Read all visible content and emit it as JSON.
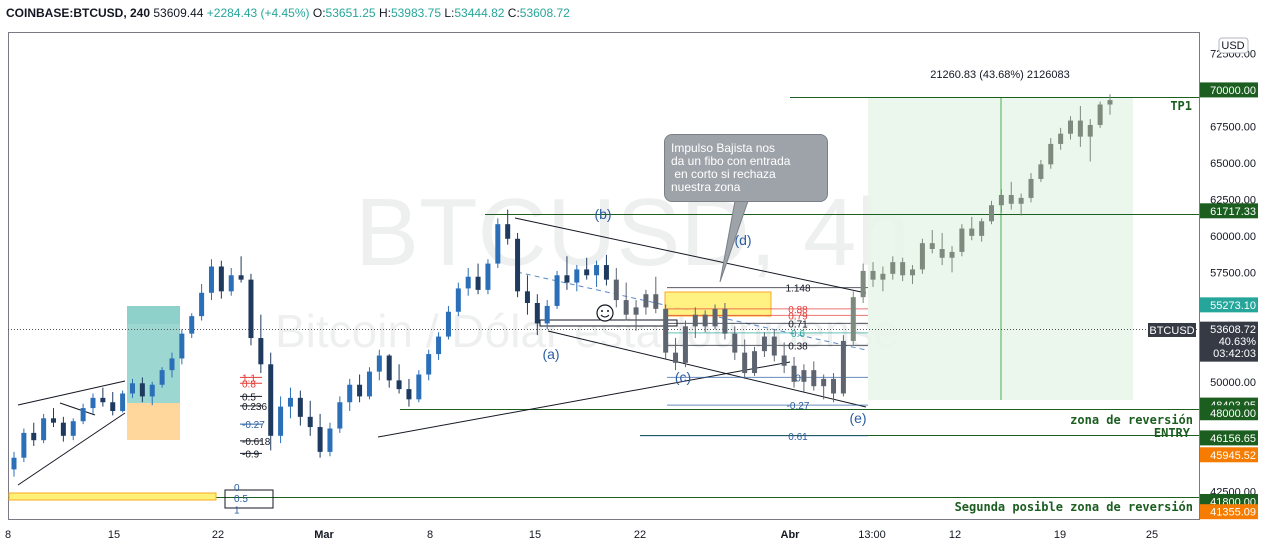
{
  "header": {
    "symbol": "COINBASE:BTCUSD, 240",
    "last": "53609.44",
    "change": "+2284.43 (+4.45%)",
    "o_label": "O:",
    "o": "53651.25",
    "h_label": "H:",
    "h": "53983.75",
    "l_label": "L:",
    "l": "53444.82",
    "c_label": "C:",
    "c": "53608.72"
  },
  "watermark": {
    "title": "BTCUSD, 4h",
    "subtitle": "Bitcoin / Dólar estadounidense"
  },
  "currency_button": "USD",
  "callout_text": "Impulso Bajista nos\nda un fibo con entrada\n en corto si rechaza\nnuestra zona",
  "measure_label": "21260.83 (43.68%) 2126083",
  "labels": {
    "tp1": "TP1",
    "zona_reversion": "zona de reversión",
    "entry": "ENTRY",
    "segunda": "Segunda posible zona de reversión"
  },
  "waves": {
    "a": "(a)",
    "b": "(b)",
    "c": "(c)",
    "d": "(d)",
    "e": "(e)"
  },
  "fib_right": [
    {
      "label": "1.148",
      "price": 56450,
      "color": "#131722"
    },
    {
      "label": "0.88",
      "price": 55000,
      "color": "#e53935"
    },
    {
      "label": "0.79",
      "price": 54550,
      "color": "#e53935"
    },
    {
      "label": "0.71",
      "price": 54000,
      "color": "#131722"
    },
    {
      "label": "0.6",
      "price": 53350,
      "color": "#26a69a"
    },
    {
      "label": "0.38",
      "price": 52500,
      "color": "#131722"
    },
    {
      "label": "0",
      "price": 50300,
      "color": "#2a5d9f"
    },
    {
      "label": "-0.27",
      "price": 48400,
      "color": "#2a5d9f"
    },
    {
      "label": "0.61",
      "price": 46300,
      "color": "#2a5d9f"
    }
  ],
  "fib_left": [
    {
      "label": "1.1",
      "price": 50300,
      "color": "#e53935"
    },
    {
      "label": "0.8",
      "price": 49900,
      "color": "#e53935"
    },
    {
      "label": "0.5",
      "price": 49000,
      "color": "#131722"
    },
    {
      "label": "0.236",
      "price": 48350,
      "color": "#131722"
    },
    {
      "label": "-0.27",
      "price": 47100,
      "color": "#2a5d9f"
    },
    {
      "label": "-0.618",
      "price": 45950,
      "color": "#131722"
    },
    {
      "label": "-0.9",
      "price": 45100,
      "color": "#131722"
    }
  ],
  "fib_bottom": [
    {
      "label": "0",
      "price": 42800
    },
    {
      "label": "0.5",
      "price": 42050
    },
    {
      "label": "1",
      "price": 41250
    }
  ],
  "chart_data": {
    "type": "candlestick",
    "symbol": "COINBASE:BTCUSD",
    "interval": "240",
    "x_ticks": [
      "8",
      "15",
      "22",
      "Mar",
      "8",
      "15",
      "22",
      "Abr",
      "13:00",
      "12",
      "19",
      "25"
    ],
    "y_ticks": [
      "72500.00",
      "67500.00",
      "65000.00",
      "62500.00",
      "60000.00",
      "57500.00",
      "50000.00",
      "42500.00"
    ],
    "ylim": [
      40600,
      73900
    ],
    "price_tags": [
      {
        "value": "70000.00",
        "price": 70000,
        "color": "#1b5e20"
      },
      {
        "value": "61717.33",
        "price": 61717,
        "color": "#1b5e20"
      },
      {
        "value": "55273.10",
        "price": 55273,
        "color": "#26a69a"
      },
      {
        "value": "53608.72",
        "price": 53608,
        "color": "#363a45",
        "extra": [
          "40.63%",
          "03:42:03"
        ],
        "label": "BTCUSD"
      },
      {
        "value": "48403.95",
        "price": 48404,
        "color": "#1b5e20"
      },
      {
        "value": "48000.00",
        "price": 47880,
        "color": "#1b5e20"
      },
      {
        "value": "46156.65",
        "price": 46157,
        "color": "#1b5e20"
      },
      {
        "value": "45945.52",
        "price": 45000,
        "color": "#f57c00"
      },
      {
        "value": "41800.00",
        "price": 41800,
        "color": "#1b5e20"
      },
      {
        "value": "41355.09",
        "price": 41100,
        "color": "#f57c00"
      }
    ],
    "horizontal_levels": [
      70000,
      61717,
      48404,
      46157,
      41800
    ],
    "candles": [
      [
        44000,
        45200,
        43500,
        44800
      ],
      [
        44800,
        46800,
        44500,
        46500
      ],
      [
        46500,
        47200,
        45600,
        46000
      ],
      [
        46000,
        47800,
        45800,
        47500
      ],
      [
        47500,
        48200,
        46900,
        47200
      ],
      [
        47200,
        47600,
        45900,
        46300
      ],
      [
        46300,
        47500,
        46000,
        47300
      ],
      [
        47300,
        48500,
        47100,
        48200
      ],
      [
        48200,
        49200,
        47800,
        48900
      ],
      [
        48900,
        49600,
        48300,
        48600
      ],
      [
        48600,
        49300,
        47700,
        48000
      ],
      [
        48000,
        49400,
        47900,
        49200
      ],
      [
        49200,
        50200,
        48900,
        49900
      ],
      [
        49900,
        50300,
        48600,
        49000
      ],
      [
        49000,
        50000,
        48400,
        49800
      ],
      [
        49800,
        51000,
        49600,
        50800
      ],
      [
        50800,
        52000,
        50300,
        51600
      ],
      [
        51600,
        53600,
        51200,
        53300
      ],
      [
        53300,
        54700,
        53000,
        54500
      ],
      [
        54500,
        56700,
        54200,
        56100
      ],
      [
        56100,
        58400,
        55600,
        57900
      ],
      [
        57900,
        58300,
        55700,
        56200
      ],
      [
        56200,
        57800,
        55900,
        57300
      ],
      [
        57300,
        58600,
        56800,
        57000
      ],
      [
        57000,
        57400,
        52500,
        53000
      ],
      [
        53000,
        54600,
        50600,
        51200
      ],
      [
        51200,
        52000,
        45300,
        46300
      ],
      [
        46300,
        49000,
        45800,
        48300
      ],
      [
        48300,
        49600,
        47500,
        48900
      ],
      [
        48900,
        49400,
        47000,
        47600
      ],
      [
        47600,
        48700,
        46300,
        46900
      ],
      [
        46900,
        47800,
        44800,
        45200
      ],
      [
        45200,
        47200,
        44900,
        46800
      ],
      [
        46800,
        49000,
        46500,
        48600
      ],
      [
        48600,
        50200,
        48000,
        49800
      ],
      [
        49800,
        50500,
        48600,
        49000
      ],
      [
        49000,
        51000,
        48800,
        50700
      ],
      [
        50700,
        52200,
        50100,
        51800
      ],
      [
        51800,
        51900,
        49600,
        50100
      ],
      [
        50100,
        51200,
        49200,
        49500
      ],
      [
        49500,
        50200,
        48300,
        48800
      ],
      [
        48800,
        50800,
        48600,
        50500
      ],
      [
        50500,
        52200,
        50100,
        51900
      ],
      [
        51900,
        53400,
        51500,
        53100
      ],
      [
        53100,
        55200,
        52900,
        54800
      ],
      [
        54800,
        56800,
        54500,
        56400
      ],
      [
        56400,
        57800,
        55900,
        57200
      ],
      [
        57200,
        58100,
        56000,
        56300
      ],
      [
        56300,
        58400,
        56000,
        58100
      ],
      [
        58100,
        61200,
        57800,
        60800
      ],
      [
        60800,
        61800,
        59400,
        59800
      ],
      [
        59800,
        60200,
        55800,
        56200
      ],
      [
        56200,
        57300,
        54600,
        55400
      ],
      [
        55400,
        56000,
        53200,
        54000
      ],
      [
        54000,
        55600,
        53600,
        55200
      ],
      [
        55200,
        57600,
        55000,
        57300
      ],
      [
        57300,
        58600,
        56300,
        56800
      ],
      [
        56800,
        58000,
        56200,
        57700
      ],
      [
        57700,
        58500,
        57000,
        57300
      ],
      [
        57300,
        58300,
        56500,
        58000
      ],
      [
        58000,
        58700,
        56600,
        57000
      ],
      [
        57000,
        57800,
        55100,
        55600
      ],
      [
        55600,
        56800,
        54200,
        54600
      ],
      [
        54600,
        55600,
        53500,
        55100
      ],
      [
        55100,
        56300,
        54600,
        56000
      ],
      [
        56000,
        57200,
        54700,
        55000
      ],
      [
        55000,
        55300,
        51600,
        52000
      ],
      [
        52000,
        53000,
        50800,
        51300
      ],
      [
        51300,
        54200,
        51000,
        53800
      ],
      [
        53800,
        55100,
        53000,
        54600
      ],
      [
        54600,
        54900,
        53400,
        53800
      ],
      [
        53800,
        55300,
        53600,
        55000
      ],
      [
        55000,
        55400,
        52900,
        53300
      ],
      [
        53300,
        53800,
        51500,
        52000
      ],
      [
        52000,
        52900,
        50200,
        50600
      ],
      [
        50600,
        52400,
        50400,
        52100
      ],
      [
        52100,
        53400,
        51700,
        53100
      ],
      [
        53100,
        53600,
        51400,
        51800
      ],
      [
        51800,
        52700,
        50600,
        51100
      ],
      [
        51100,
        51700,
        49600,
        50000
      ],
      [
        50000,
        51200,
        49300,
        50800
      ],
      [
        50800,
        51400,
        49400,
        49700
      ],
      [
        49700,
        50500,
        48800,
        50200
      ],
      [
        50200,
        50600,
        48600,
        49200
      ],
      [
        49200,
        53200,
        49000,
        52800
      ],
      [
        52800,
        56200,
        52500,
        55800
      ],
      [
        55800,
        58100,
        55400,
        57600
      ],
      [
        57600,
        58200,
        56500,
        57000
      ],
      [
        57000,
        57900,
        56200,
        57400
      ],
      [
        57400,
        58600,
        57000,
        58200
      ],
      [
        58200,
        58500,
        56900,
        57300
      ],
      [
        57300,
        58000,
        56700,
        57700
      ],
      [
        57700,
        59800,
        57400,
        59500
      ],
      [
        59500,
        60400,
        58800,
        59100
      ],
      [
        59100,
        60200,
        58000,
        58500
      ],
      [
        58500,
        59300,
        57500,
        58900
      ],
      [
        58900,
        60800,
        58600,
        60500
      ],
      [
        60500,
        61300,
        59700,
        60000
      ],
      [
        60000,
        61200,
        59600,
        61000
      ],
      [
        61000,
        62400,
        60800,
        62100
      ],
      [
        62100,
        63200,
        61600,
        62800
      ],
      [
        62800,
        63700,
        61800,
        62200
      ],
      [
        62200,
        62900,
        61400,
        62600
      ],
      [
        62600,
        64300,
        62300,
        63900
      ],
      [
        63900,
        65200,
        63700,
        64900
      ],
      [
        64900,
        66700,
        64600,
        66300
      ],
      [
        66300,
        67400,
        65900,
        67000
      ],
      [
        67000,
        68200,
        66600,
        67900
      ],
      [
        67900,
        68900,
        66100,
        66800
      ],
      [
        66800,
        68000,
        65100,
        67600
      ],
      [
        67600,
        69200,
        67400,
        69000
      ],
      [
        69000,
        69700,
        68300,
        69300
      ]
    ]
  }
}
